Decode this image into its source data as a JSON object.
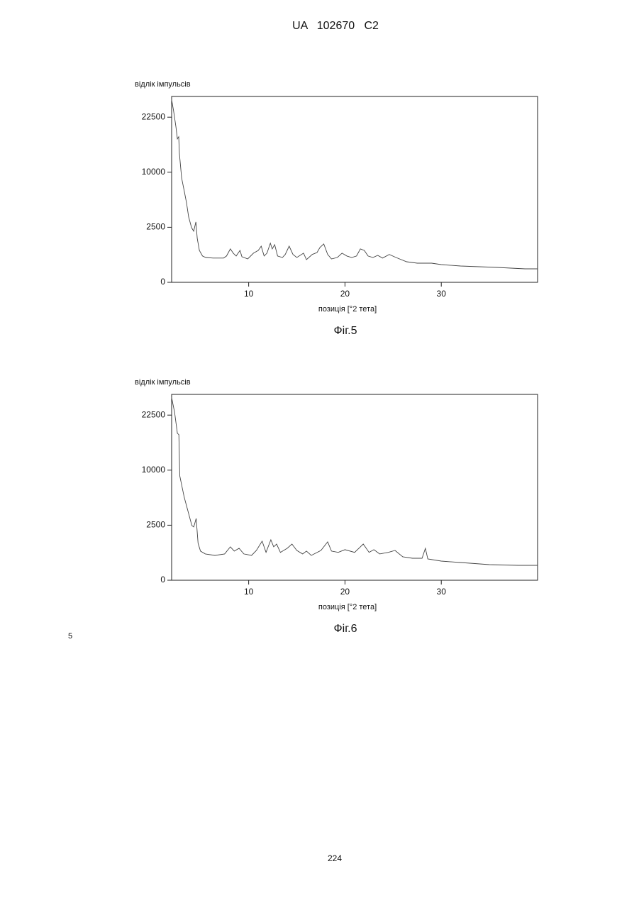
{
  "header": "UA   102670   C2",
  "chart_data": [
    {
      "type": "line",
      "ylabel": "відлік імпульсів",
      "xlabel": "позиція [°2 тета]",
      "caption": "Фіг.5",
      "yscale": "sqrt",
      "color": "#444444",
      "xlim": [
        2,
        40
      ],
      "xticks": [
        10,
        20,
        30
      ],
      "ylim": [
        0,
        28500
      ],
      "yticks": [
        0,
        2500,
        10000,
        22500
      ],
      "x": [
        2.0,
        2.2,
        2.45,
        2.6,
        2.74,
        2.8,
        3.04,
        3.33,
        3.55,
        3.77,
        4.07,
        4.29,
        4.52,
        4.66,
        4.88,
        5.2,
        5.55,
        6.3,
        7.4,
        7.7,
        8.1,
        8.4,
        8.7,
        9.1,
        9.3,
        9.9,
        10.5,
        11.0,
        11.3,
        11.6,
        11.9,
        12.25,
        12.45,
        12.7,
        13.0,
        13.5,
        13.8,
        14.2,
        14.6,
        15.0,
        15.7,
        16.0,
        16.6,
        17.1,
        17.4,
        17.8,
        18.2,
        18.6,
        19.2,
        19.7,
        20.2,
        20.7,
        21.2,
        21.6,
        22.0,
        22.4,
        22.9,
        23.4,
        23.9,
        24.6,
        25.3,
        26.4,
        27.5,
        29.0,
        30.0,
        32.0,
        35.8,
        38.7,
        40.0
      ],
      "values": [
        27500,
        24350,
        19900,
        16970,
        17480,
        13800,
        8990,
        6710,
        5220,
        3520,
        2470,
        2160,
        3010,
        1600,
        842,
        570,
        510,
        485,
        485,
        570,
        920,
        700,
        570,
        842,
        540,
        453,
        700,
        842,
        1080,
        570,
        700,
        1260,
        920,
        1170,
        570,
        510,
        640,
        1080,
        640,
        510,
        700,
        426,
        640,
        734,
        999,
        1213,
        640,
        453,
        510,
        700,
        570,
        510,
        570,
        920,
        842,
        570,
        510,
        600,
        485,
        640,
        510,
        350,
        303,
        303,
        260,
        220,
        183,
        150,
        150
      ]
    },
    {
      "type": "line",
      "ylabel": "відлік імпульсів",
      "xlabel": "позиція [°2 тета]",
      "caption": "Фіг.6",
      "yscale": "sqrt",
      "color": "#444444",
      "xlim": [
        2,
        40
      ],
      "xticks": [
        10,
        20,
        30
      ],
      "ylim": [
        0,
        28500
      ],
      "yticks": [
        0,
        2500,
        10000,
        22500
      ],
      "x": [
        2.0,
        2.3,
        2.6,
        2.75,
        2.85,
        3.3,
        3.7,
        4.1,
        4.3,
        4.55,
        4.75,
        5.0,
        5.5,
        6.5,
        7.5,
        8.1,
        8.5,
        9.0,
        9.5,
        10.3,
        10.8,
        11.4,
        11.8,
        12.3,
        12.6,
        12.9,
        13.3,
        14.0,
        14.5,
        15.0,
        15.6,
        16.0,
        16.5,
        17.5,
        18.2,
        18.6,
        19.3,
        20.0,
        21.0,
        21.9,
        22.5,
        23.0,
        23.6,
        24.5,
        25.2,
        26.0,
        27.0,
        28.0,
        28.35,
        28.6,
        30.0,
        32.0,
        35.0,
        38.0,
        40.0
      ],
      "values": [
        27500,
        23380,
        17830,
        17480,
        8990,
        5700,
        3920,
        2470,
        2340,
        3150,
        1125,
        700,
        570,
        510,
        570,
        920,
        700,
        842,
        570,
        510,
        734,
        1260,
        640,
        1350,
        920,
        1080,
        640,
        842,
        1080,
        734,
        570,
        700,
        510,
        734,
        1213,
        700,
        640,
        770,
        640,
        1080,
        640,
        770,
        570,
        640,
        734,
        453,
        400,
        400,
        842,
        374,
        303,
        260,
        201,
        183,
        183
      ]
    }
  ],
  "footer": {
    "line_number": "5",
    "page_number": "224"
  }
}
